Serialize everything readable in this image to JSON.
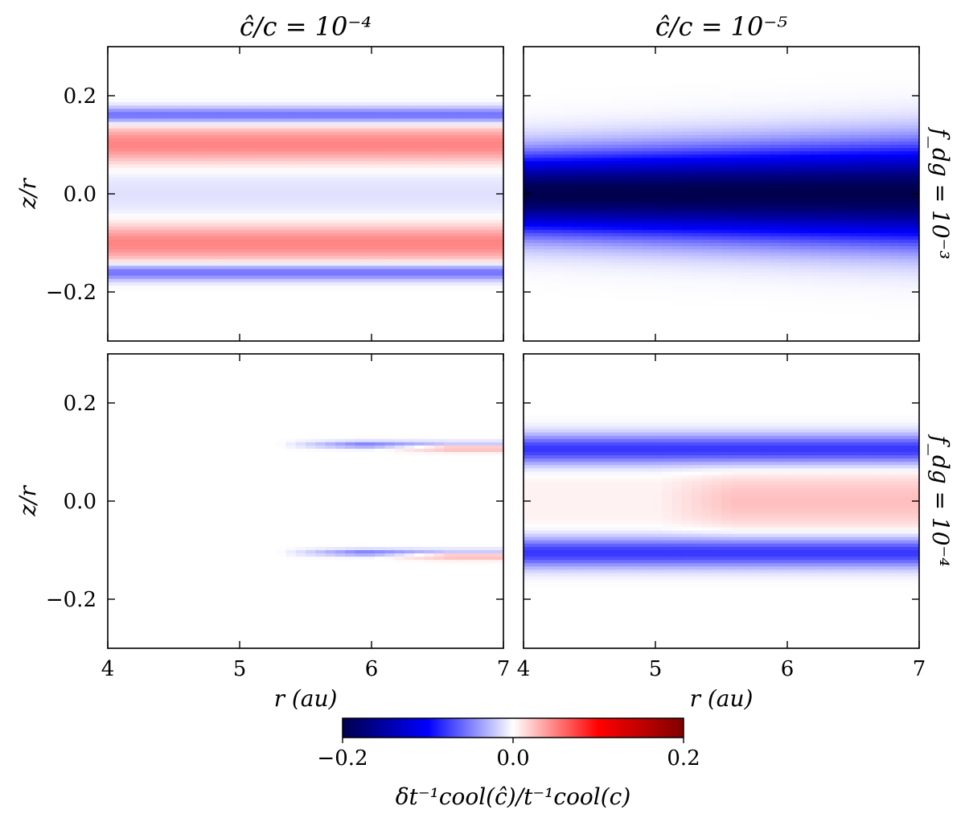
{
  "chart_data": {
    "type": "heatmap",
    "colormap": "seismic",
    "colorbar": {
      "vmin": -0.2,
      "vmax": 0.2,
      "ticks": [
        "−0.2",
        "0.0",
        "0.2"
      ],
      "label": "δt⁻¹cool(ĉ)/t⁻¹cool(c)"
    },
    "x_axis": {
      "label": "r (au)",
      "range": [
        4,
        7
      ],
      "ticks": [
        "4",
        "5",
        "6",
        "7"
      ]
    },
    "y_axis": {
      "label": "z/r",
      "range": [
        -0.3,
        0.3
      ],
      "ticks": [
        "0.2",
        "0.0",
        "−0.2"
      ]
    },
    "column_titles": [
      "ĉ/c = 10⁻⁴",
      "ĉ/c = 10⁻⁵"
    ],
    "row_titles": [
      "f_dg = 10⁻³",
      "f_dg = 10⁻⁴"
    ],
    "panels": [
      {
        "name": "c-1e-4-fdg-1e-3",
        "bands": [
          {
            "z": 0.16,
            "value": -0.06,
            "width": 0.012,
            "grow": 0.0
          },
          {
            "z": 0.1,
            "value": 0.05,
            "width": 0.028,
            "grow": 0.0
          },
          {
            "z": -0.1,
            "value": 0.05,
            "width": 0.028,
            "grow": 0.0
          },
          {
            "z": -0.16,
            "value": -0.06,
            "width": 0.012,
            "grow": 0.0
          },
          {
            "z": 0.0,
            "value": -0.012,
            "width": 0.05,
            "grow": 0.0
          }
        ]
      },
      {
        "name": "c-1e-5-fdg-1e-3",
        "bands": [
          {
            "z": 0.0,
            "value": -0.2,
            "width": 0.055,
            "grow": 0.25
          }
        ]
      },
      {
        "name": "c-1e-4-fdg-1e-4",
        "bands": [
          {
            "z": 0.11,
            "value": 0.05,
            "width": 0.006,
            "grow": 0.0,
            "rstart": 6.0
          },
          {
            "z": 0.115,
            "value": -0.05,
            "width": 0.005,
            "grow": 0.0,
            "rstart": 5.3
          },
          {
            "z": -0.11,
            "value": 0.05,
            "width": 0.006,
            "grow": 0.0,
            "rstart": 6.0
          },
          {
            "z": -0.105,
            "value": -0.05,
            "width": 0.005,
            "grow": 0.0,
            "rstart": 5.3
          }
        ]
      },
      {
        "name": "c-1e-5-fdg-1e-4",
        "bands": [
          {
            "z": 0.105,
            "value": -0.08,
            "width": 0.022,
            "grow": 0.0
          },
          {
            "z": -0.105,
            "value": -0.08,
            "width": 0.022,
            "grow": 0.0
          },
          {
            "z": 0.0,
            "value": 0.025,
            "width": 0.045,
            "grow": 0.0
          },
          {
            "z": 0.0,
            "value": -0.02,
            "width": 0.04,
            "grow": 0.0,
            "rend": 5.0
          }
        ]
      }
    ]
  }
}
